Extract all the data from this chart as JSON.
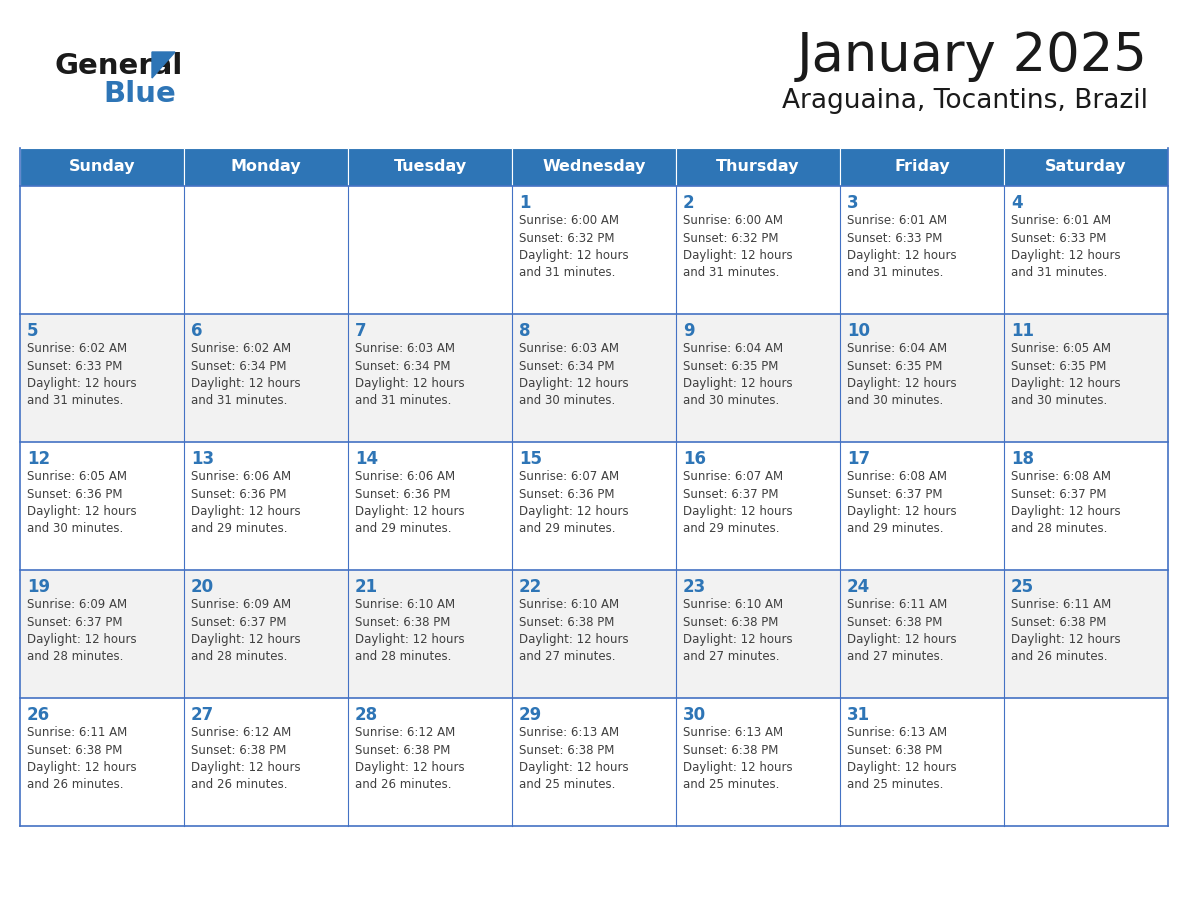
{
  "title": "January 2025",
  "subtitle": "Araguaina, Tocantins, Brazil",
  "header_bg": "#2E75B6",
  "header_text_color": "#FFFFFF",
  "header_font_size": 11.5,
  "title_font_size": 38,
  "subtitle_font_size": 19,
  "day_names": [
    "Sunday",
    "Monday",
    "Tuesday",
    "Wednesday",
    "Thursday",
    "Friday",
    "Saturday"
  ],
  "cell_bg_odd": "#F2F2F2",
  "cell_bg_even": "#FFFFFF",
  "cell_border_color": "#4472C4",
  "cell_top_border_color": "#2E75B6",
  "day_number_color": "#2E75B6",
  "day_number_font_size": 12,
  "info_font_size": 8.5,
  "text_color": "#404040",
  "logo_general_color": "#1a1a1a",
  "logo_blue_color": "#2E75B6",
  "weeks": [
    [
      {
        "day": 0,
        "info": ""
      },
      {
        "day": 0,
        "info": ""
      },
      {
        "day": 0,
        "info": ""
      },
      {
        "day": 1,
        "info": "Sunrise: 6:00 AM\nSunset: 6:32 PM\nDaylight: 12 hours\nand 31 minutes."
      },
      {
        "day": 2,
        "info": "Sunrise: 6:00 AM\nSunset: 6:32 PM\nDaylight: 12 hours\nand 31 minutes."
      },
      {
        "day": 3,
        "info": "Sunrise: 6:01 AM\nSunset: 6:33 PM\nDaylight: 12 hours\nand 31 minutes."
      },
      {
        "day": 4,
        "info": "Sunrise: 6:01 AM\nSunset: 6:33 PM\nDaylight: 12 hours\nand 31 minutes."
      }
    ],
    [
      {
        "day": 5,
        "info": "Sunrise: 6:02 AM\nSunset: 6:33 PM\nDaylight: 12 hours\nand 31 minutes."
      },
      {
        "day": 6,
        "info": "Sunrise: 6:02 AM\nSunset: 6:34 PM\nDaylight: 12 hours\nand 31 minutes."
      },
      {
        "day": 7,
        "info": "Sunrise: 6:03 AM\nSunset: 6:34 PM\nDaylight: 12 hours\nand 31 minutes."
      },
      {
        "day": 8,
        "info": "Sunrise: 6:03 AM\nSunset: 6:34 PM\nDaylight: 12 hours\nand 30 minutes."
      },
      {
        "day": 9,
        "info": "Sunrise: 6:04 AM\nSunset: 6:35 PM\nDaylight: 12 hours\nand 30 minutes."
      },
      {
        "day": 10,
        "info": "Sunrise: 6:04 AM\nSunset: 6:35 PM\nDaylight: 12 hours\nand 30 minutes."
      },
      {
        "day": 11,
        "info": "Sunrise: 6:05 AM\nSunset: 6:35 PM\nDaylight: 12 hours\nand 30 minutes."
      }
    ],
    [
      {
        "day": 12,
        "info": "Sunrise: 6:05 AM\nSunset: 6:36 PM\nDaylight: 12 hours\nand 30 minutes."
      },
      {
        "day": 13,
        "info": "Sunrise: 6:06 AM\nSunset: 6:36 PM\nDaylight: 12 hours\nand 29 minutes."
      },
      {
        "day": 14,
        "info": "Sunrise: 6:06 AM\nSunset: 6:36 PM\nDaylight: 12 hours\nand 29 minutes."
      },
      {
        "day": 15,
        "info": "Sunrise: 6:07 AM\nSunset: 6:36 PM\nDaylight: 12 hours\nand 29 minutes."
      },
      {
        "day": 16,
        "info": "Sunrise: 6:07 AM\nSunset: 6:37 PM\nDaylight: 12 hours\nand 29 minutes."
      },
      {
        "day": 17,
        "info": "Sunrise: 6:08 AM\nSunset: 6:37 PM\nDaylight: 12 hours\nand 29 minutes."
      },
      {
        "day": 18,
        "info": "Sunrise: 6:08 AM\nSunset: 6:37 PM\nDaylight: 12 hours\nand 28 minutes."
      }
    ],
    [
      {
        "day": 19,
        "info": "Sunrise: 6:09 AM\nSunset: 6:37 PM\nDaylight: 12 hours\nand 28 minutes."
      },
      {
        "day": 20,
        "info": "Sunrise: 6:09 AM\nSunset: 6:37 PM\nDaylight: 12 hours\nand 28 minutes."
      },
      {
        "day": 21,
        "info": "Sunrise: 6:10 AM\nSunset: 6:38 PM\nDaylight: 12 hours\nand 28 minutes."
      },
      {
        "day": 22,
        "info": "Sunrise: 6:10 AM\nSunset: 6:38 PM\nDaylight: 12 hours\nand 27 minutes."
      },
      {
        "day": 23,
        "info": "Sunrise: 6:10 AM\nSunset: 6:38 PM\nDaylight: 12 hours\nand 27 minutes."
      },
      {
        "day": 24,
        "info": "Sunrise: 6:11 AM\nSunset: 6:38 PM\nDaylight: 12 hours\nand 27 minutes."
      },
      {
        "day": 25,
        "info": "Sunrise: 6:11 AM\nSunset: 6:38 PM\nDaylight: 12 hours\nand 26 minutes."
      }
    ],
    [
      {
        "day": 26,
        "info": "Sunrise: 6:11 AM\nSunset: 6:38 PM\nDaylight: 12 hours\nand 26 minutes."
      },
      {
        "day": 27,
        "info": "Sunrise: 6:12 AM\nSunset: 6:38 PM\nDaylight: 12 hours\nand 26 minutes."
      },
      {
        "day": 28,
        "info": "Sunrise: 6:12 AM\nSunset: 6:38 PM\nDaylight: 12 hours\nand 26 minutes."
      },
      {
        "day": 29,
        "info": "Sunrise: 6:13 AM\nSunset: 6:38 PM\nDaylight: 12 hours\nand 25 minutes."
      },
      {
        "day": 30,
        "info": "Sunrise: 6:13 AM\nSunset: 6:38 PM\nDaylight: 12 hours\nand 25 minutes."
      },
      {
        "day": 31,
        "info": "Sunrise: 6:13 AM\nSunset: 6:38 PM\nDaylight: 12 hours\nand 25 minutes."
      },
      {
        "day": 0,
        "info": ""
      }
    ]
  ]
}
